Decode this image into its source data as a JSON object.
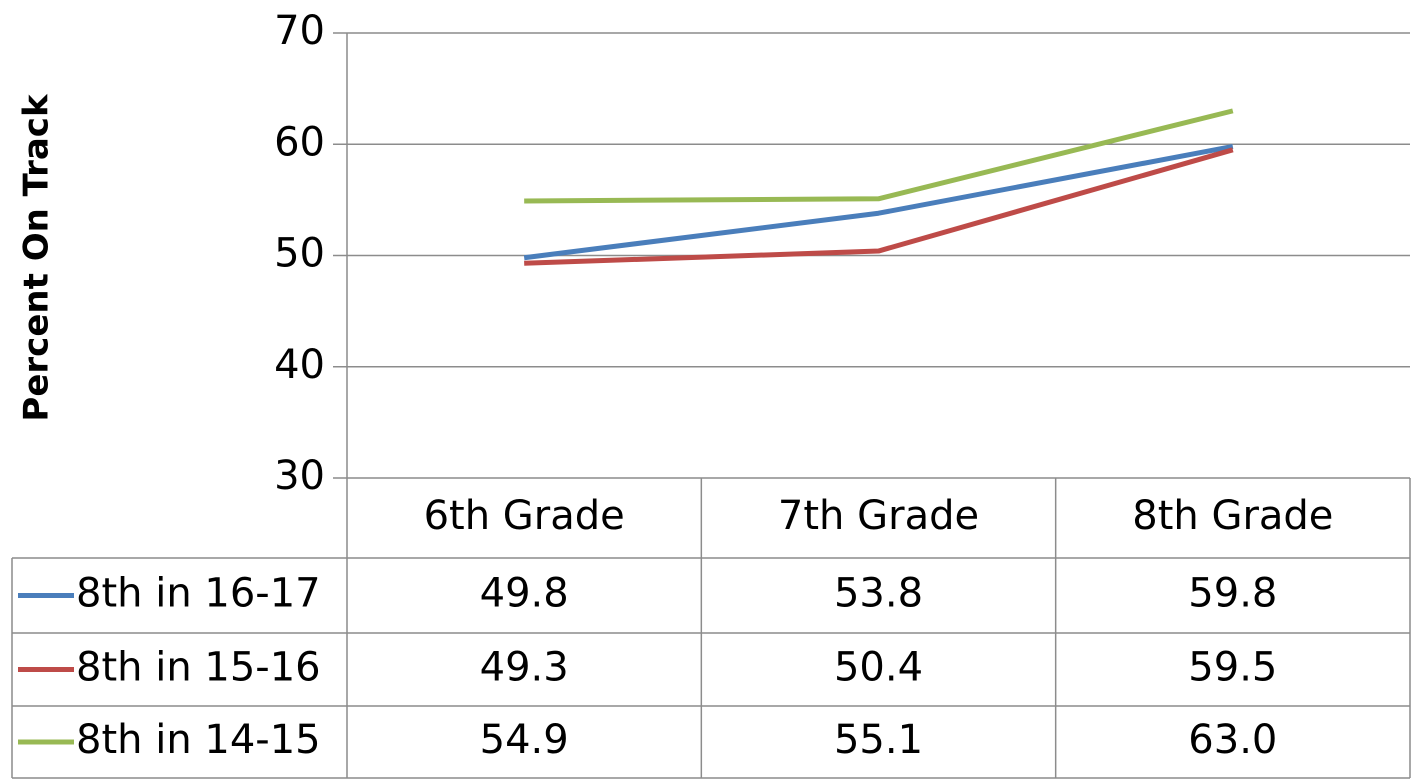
{
  "chart_data": {
    "type": "line",
    "y_label": "Percent On Track",
    "categories": [
      "6th Grade",
      "7th Grade",
      "8th Grade"
    ],
    "series": [
      {
        "name": "8th in 16-17",
        "color": "#4a7ebb",
        "values": [
          49.8,
          53.8,
          59.8
        ],
        "value_labels": [
          "49.8",
          "53.8",
          "59.8"
        ]
      },
      {
        "name": "8th in 15-16",
        "color": "#be4b48",
        "values": [
          49.3,
          50.4,
          59.5
        ],
        "value_labels": [
          "49.3",
          "50.4",
          "59.5"
        ]
      },
      {
        "name": "8th in 14-15",
        "color": "#98b954",
        "values": [
          54.9,
          55.1,
          63.0
        ],
        "value_labels": [
          "54.9",
          "55.1",
          "63.0"
        ]
      }
    ],
    "ylim": [
      30,
      70
    ],
    "yticks": [
      30,
      40,
      50,
      60,
      70
    ],
    "grid": true
  }
}
